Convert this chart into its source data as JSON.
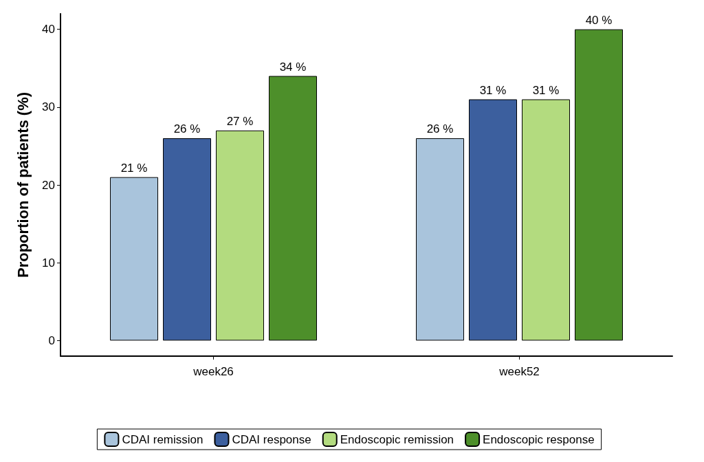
{
  "chart_data": {
    "type": "bar",
    "ylabel": "Proportion of patients (%)",
    "categories": [
      "week26",
      "week52"
    ],
    "series": [
      {
        "name": "CDAI remission",
        "color": "#a9c4dc",
        "values": [
          21,
          26
        ],
        "value_labels": [
          "21 %",
          "26 %"
        ]
      },
      {
        "name": "CDAI response",
        "color": "#3c5f9e",
        "values": [
          26,
          31
        ],
        "value_labels": [
          "26 %",
          "31 %"
        ]
      },
      {
        "name": "Endoscopic remission",
        "color": "#b3db7f",
        "values": [
          27,
          31
        ],
        "value_labels": [
          "27 %",
          "31 %"
        ]
      },
      {
        "name": "Endoscopic response",
        "color": "#4d8f2a",
        "values": [
          34,
          40
        ],
        "value_labels": [
          "34 %",
          "40 %"
        ]
      }
    ],
    "ylim": [
      -2,
      42
    ],
    "yticks": [
      0,
      10,
      20,
      30,
      40
    ],
    "grid": false,
    "legend": "bottom"
  }
}
